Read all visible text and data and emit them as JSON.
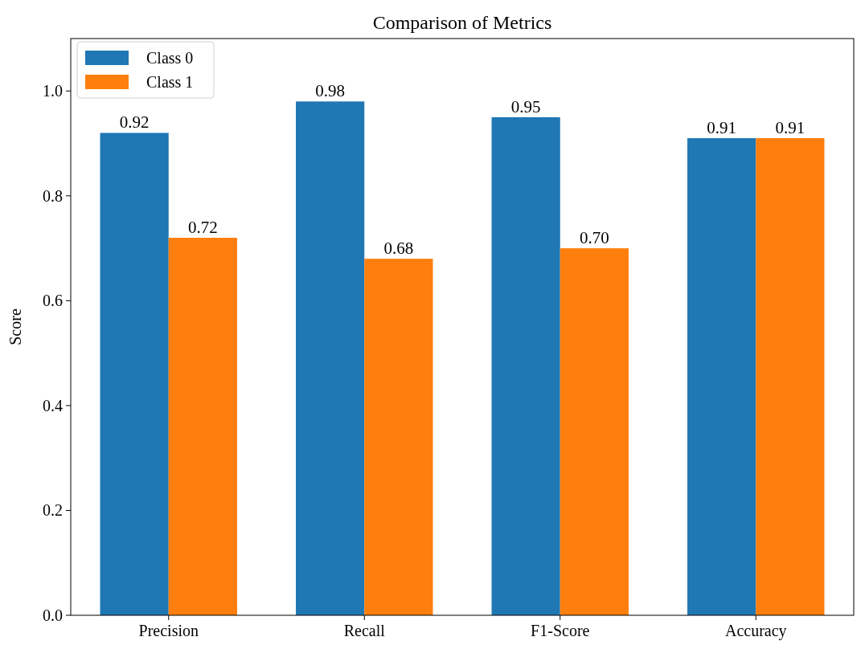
{
  "chart_data": {
    "type": "bar",
    "title": "Comparison of Metrics",
    "ylabel": "Score",
    "categories": [
      "Precision",
      "Recall",
      "F1-Score",
      "Accuracy"
    ],
    "series": [
      {
        "name": "Class 0",
        "color": "#1f77b4",
        "values": [
          0.92,
          0.98,
          0.95,
          0.91
        ],
        "value_labels": [
          "0.92",
          "0.98",
          "0.95",
          "0.91"
        ]
      },
      {
        "name": "Class 1",
        "color": "#ff7f0e",
        "values": [
          0.72,
          0.68,
          0.7,
          0.91
        ],
        "value_labels": [
          "0.72",
          "0.68",
          "0.70",
          "0.91"
        ]
      }
    ],
    "ylim": [
      0,
      1.1
    ],
    "yticks": [
      {
        "value": 0,
        "label": "0.0"
      },
      {
        "value": 0.2,
        "label": "0.2"
      },
      {
        "value": 0.4,
        "label": "0.4"
      },
      {
        "value": 0.6,
        "label": "0.6"
      },
      {
        "value": 0.8,
        "label": "0.8"
      },
      {
        "value": 1,
        "label": "1.0"
      }
    ],
    "legend": "top left"
  }
}
